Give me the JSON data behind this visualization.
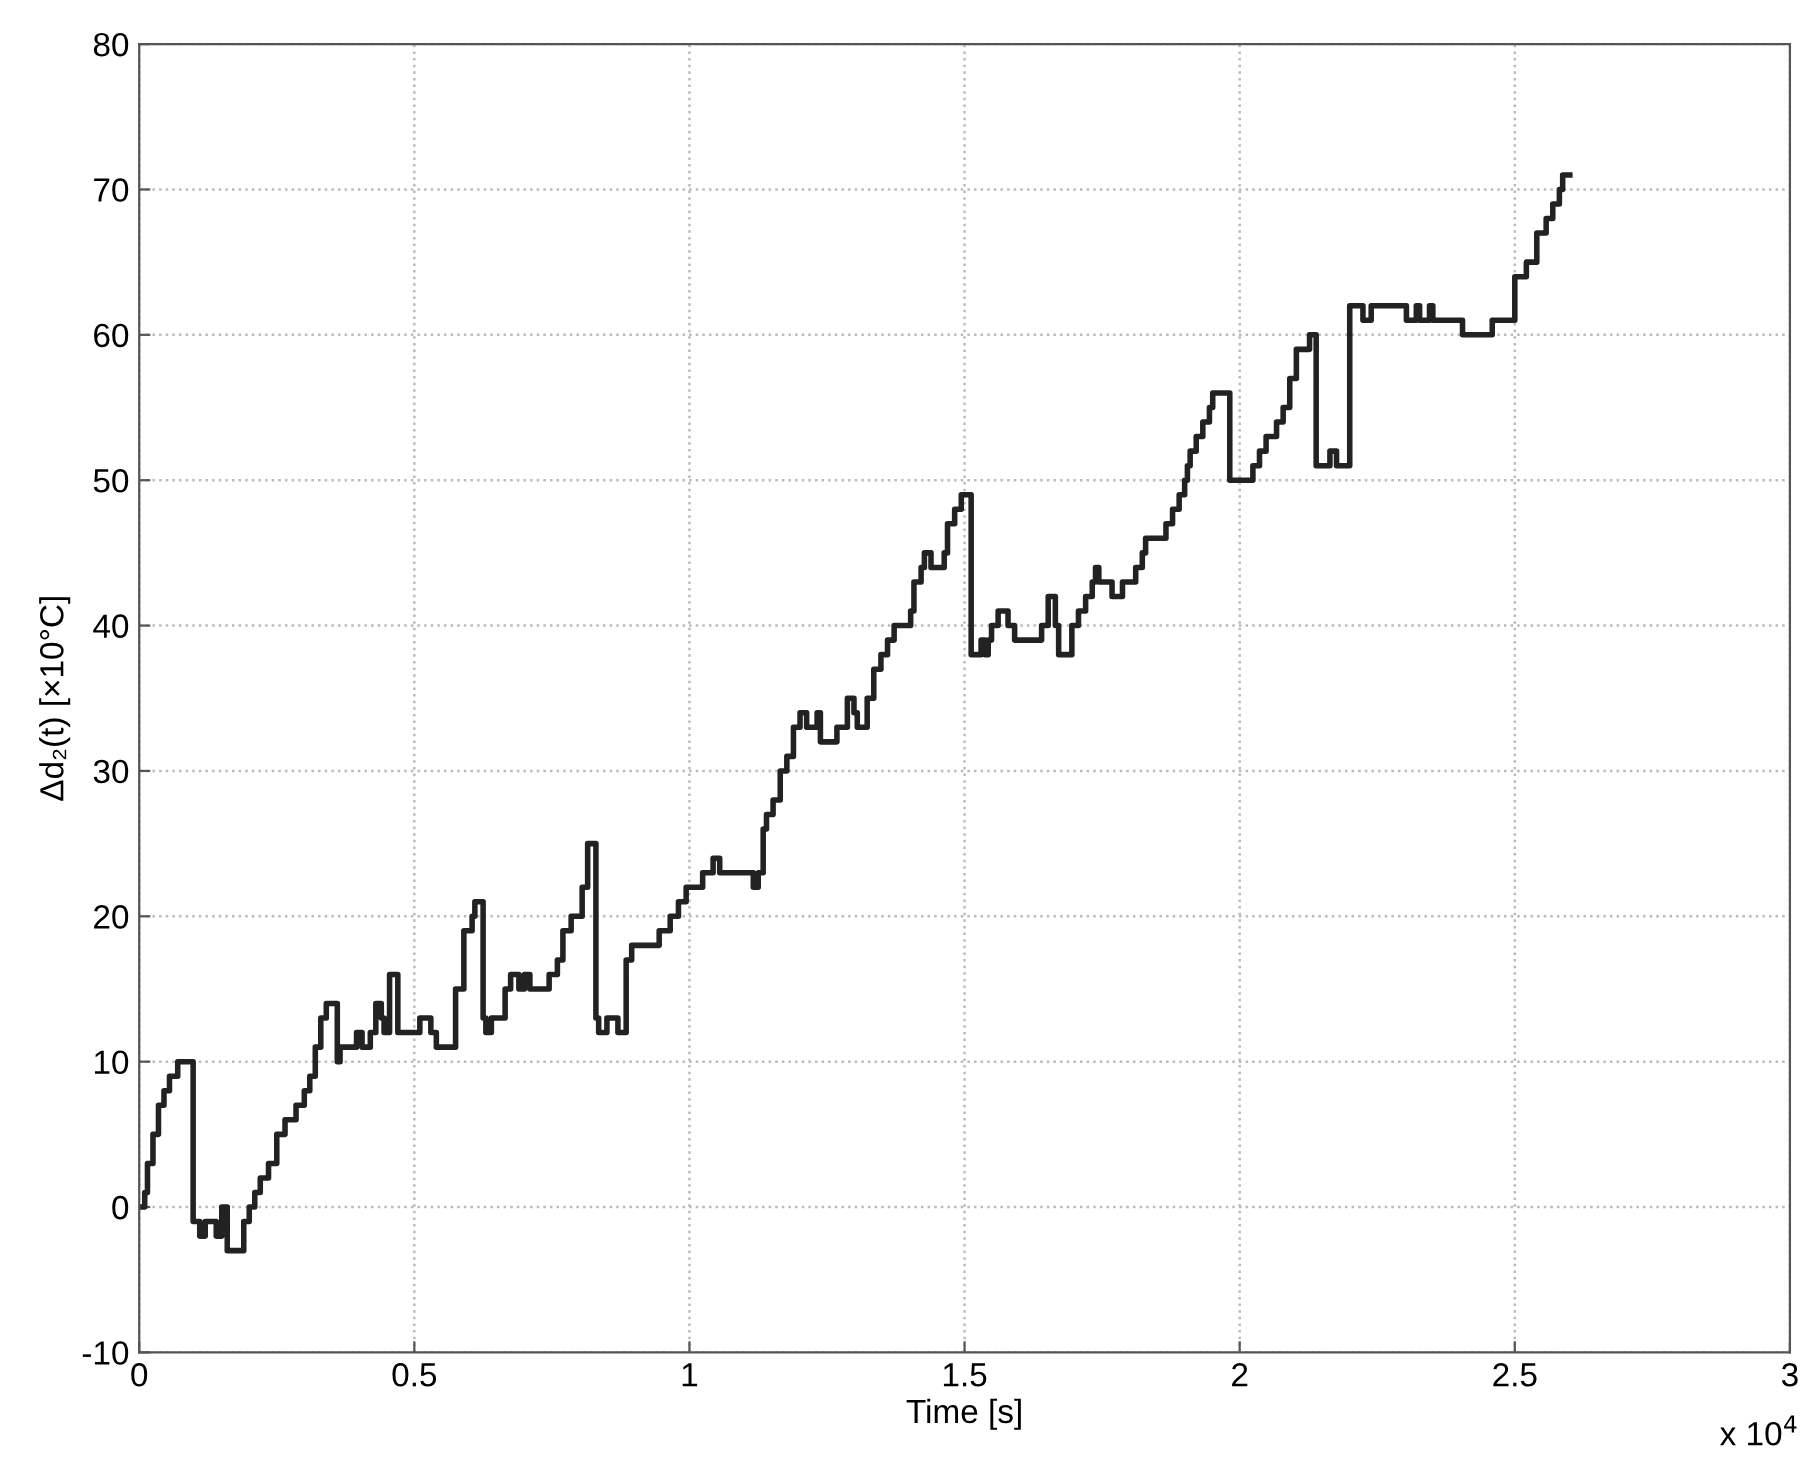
{
  "chart_data": {
    "type": "step",
    "xlabel": "Time [s]",
    "ylabel": "Δd₂(t) [×10°C]",
    "annotations": [
      "x 10$^{4}$"
    ],
    "x": [
      0.0,
      0.01,
      0.015,
      0.025,
      0.035,
      0.045,
      0.055,
      0.07,
      0.098,
      0.11,
      0.12,
      0.14,
      0.15,
      0.16,
      0.19,
      0.2,
      0.21,
      0.22,
      0.235,
      0.25,
      0.265,
      0.285,
      0.3,
      0.31,
      0.32,
      0.33,
      0.34,
      0.36,
      0.365,
      0.395,
      0.405,
      0.42,
      0.43,
      0.44,
      0.445,
      0.455,
      0.47,
      0.51,
      0.53,
      0.54,
      0.575,
      0.59,
      0.605,
      0.61,
      0.625,
      0.63,
      0.64,
      0.665,
      0.675,
      0.69,
      0.7,
      0.71,
      0.745,
      0.76,
      0.77,
      0.785,
      0.805,
      0.815,
      0.83,
      0.835,
      0.85,
      0.87,
      0.885,
      0.895,
      0.945,
      0.965,
      0.98,
      0.994,
      1.024,
      1.043,
      1.055,
      1.116,
      1.125,
      1.134,
      1.14,
      1.152,
      1.165,
      1.177,
      1.189,
      1.201,
      1.213,
      1.232,
      1.238,
      1.268,
      1.287,
      1.299,
      1.305,
      1.323,
      1.335,
      1.348,
      1.36,
      1.372,
      1.402,
      1.408,
      1.421,
      1.427,
      1.439,
      1.463,
      1.469,
      1.482,
      1.494,
      1.512,
      1.53,
      1.537,
      1.543,
      1.549,
      1.561,
      1.579,
      1.591,
      1.64,
      1.652,
      1.665,
      1.671,
      1.695,
      1.707,
      1.72,
      1.732,
      1.738,
      1.744,
      1.768,
      1.787,
      1.811,
      1.823,
      1.829,
      1.866,
      1.878,
      1.89,
      1.9,
      1.905,
      1.91,
      1.921,
      1.933,
      1.945,
      1.951,
      1.982,
      2.024,
      2.036,
      2.048,
      2.067,
      2.079,
      2.091,
      2.103,
      2.127,
      2.139,
      2.164,
      2.176,
      2.2,
      2.224,
      2.239,
      2.303,
      2.321,
      2.327,
      2.345,
      2.351,
      2.405,
      2.459,
      2.5,
      2.521,
      2.54,
      2.557,
      2.569,
      2.581,
      2.587,
      2.6
    ],
    "values": [
      0,
      1,
      3,
      5,
      7,
      8,
      9,
      10,
      -1,
      -2,
      -1,
      -2,
      0,
      -3,
      -1,
      0,
      1,
      2,
      3,
      5,
      6,
      7,
      8,
      9,
      11,
      13,
      14,
      10,
      11,
      12,
      11,
      12,
      14,
      13,
      12,
      16,
      12,
      13,
      12,
      11,
      15,
      19,
      20,
      21,
      13,
      12,
      13,
      15,
      16,
      15,
      16,
      15,
      16,
      17,
      19,
      20,
      22,
      25,
      13,
      12,
      13,
      12,
      17,
      18,
      19,
      20,
      21,
      22,
      23,
      24,
      23,
      22,
      23,
      26,
      27,
      28,
      30,
      31,
      33,
      34,
      33,
      34,
      32,
      33,
      35,
      34,
      33,
      35,
      37,
      38,
      39,
      40,
      41,
      43,
      44,
      45,
      44,
      45,
      47,
      48,
      49,
      38,
      39,
      38,
      39,
      40,
      41,
      40,
      39,
      40,
      42,
      40,
      38,
      40,
      41,
      42,
      43,
      44,
      43,
      42,
      43,
      44,
      45,
      46,
      47,
      48,
      49,
      50,
      51,
      52,
      53,
      54,
      55,
      56,
      50,
      51,
      52,
      53,
      54,
      55,
      57,
      59,
      60,
      51,
      52,
      51,
      62,
      61,
      62,
      61,
      62,
      61,
      62,
      61,
      60,
      61,
      64,
      65,
      67,
      68,
      69,
      70,
      71,
      71
    ],
    "color": "#222222",
    "xlim": [
      0,
      3
    ],
    "xticks": [
      0,
      0.5,
      1,
      1.5,
      2,
      2.5,
      3
    ],
    "ylim": [
      -10,
      80
    ],
    "yticks": [
      -10,
      0,
      10,
      20,
      30,
      40,
      50,
      60,
      70,
      80
    ],
    "grid": true
  }
}
